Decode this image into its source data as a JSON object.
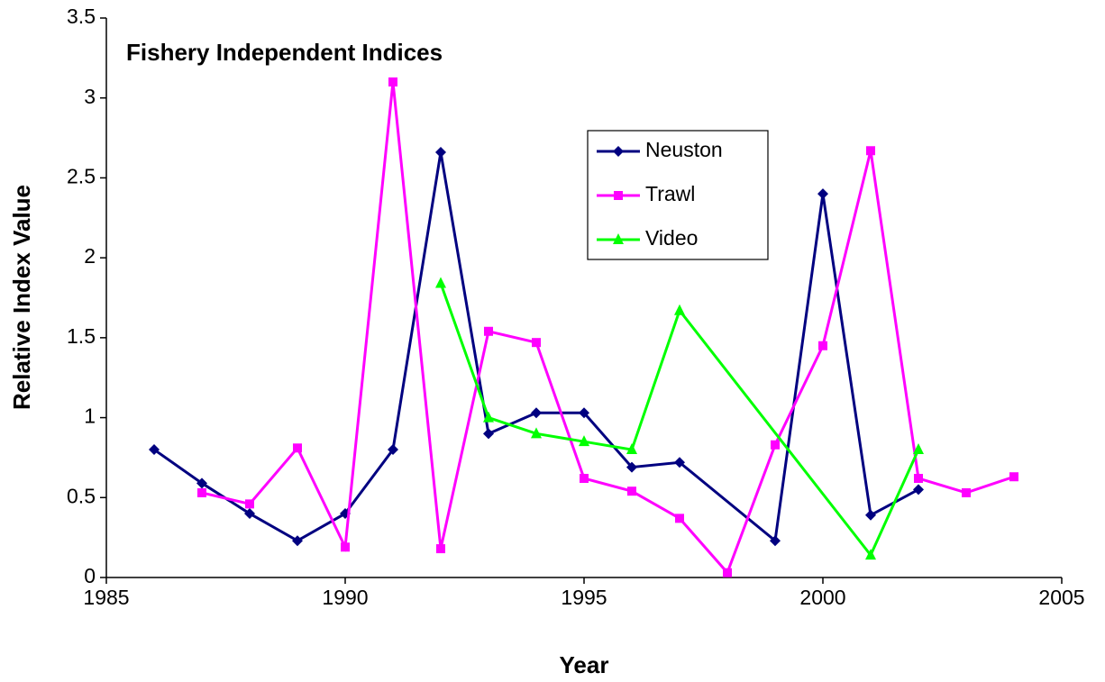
{
  "chart_data": {
    "type": "line",
    "title": "Fishery Independent Indices",
    "x_label": "Year",
    "y_label": "Relative Index Value",
    "xlim": [
      1985,
      2005
    ],
    "xticks": [
      1985,
      1990,
      1995,
      2000,
      2005
    ],
    "ylim": [
      0,
      3.5
    ],
    "yticks": [
      0,
      0.5,
      1,
      1.5,
      2,
      2.5,
      3,
      3.5
    ],
    "grid": false,
    "legend": "upper center",
    "series": [
      {
        "name": "Neuston",
        "color": "#000080",
        "marker": "diamond",
        "x": [
          1986,
          1987,
          1988,
          1989,
          1990,
          1991,
          1992,
          1993,
          1994,
          1995,
          1996,
          1997,
          1999,
          2000,
          2001,
          2002
        ],
        "values": [
          0.8,
          0.59,
          0.4,
          0.23,
          0.4,
          0.8,
          2.66,
          0.9,
          1.03,
          1.03,
          0.69,
          0.72,
          0.23,
          2.4,
          0.39,
          0.55
        ]
      },
      {
        "name": "Trawl",
        "color": "#ff00ff",
        "marker": "square",
        "x": [
          1987,
          1988,
          1989,
          1990,
          1991,
          1992,
          1993,
          1994,
          1995,
          1996,
          1997,
          1998,
          1999,
          2000,
          2001,
          2002,
          2003,
          2004
        ],
        "values": [
          0.53,
          0.46,
          0.81,
          0.19,
          3.1,
          0.18,
          1.54,
          1.47,
          0.62,
          0.54,
          0.37,
          0.03,
          0.83,
          1.45,
          2.67,
          0.62,
          0.53,
          0.63
        ]
      },
      {
        "name": "Video",
        "color": "#00ff00",
        "marker": "triangle",
        "x": [
          1992,
          1993,
          1994,
          1995,
          1996,
          1997,
          2001,
          2002
        ],
        "values": [
          1.84,
          1.0,
          0.9,
          0.85,
          0.8,
          1.67,
          0.14,
          0.8
        ]
      }
    ]
  }
}
